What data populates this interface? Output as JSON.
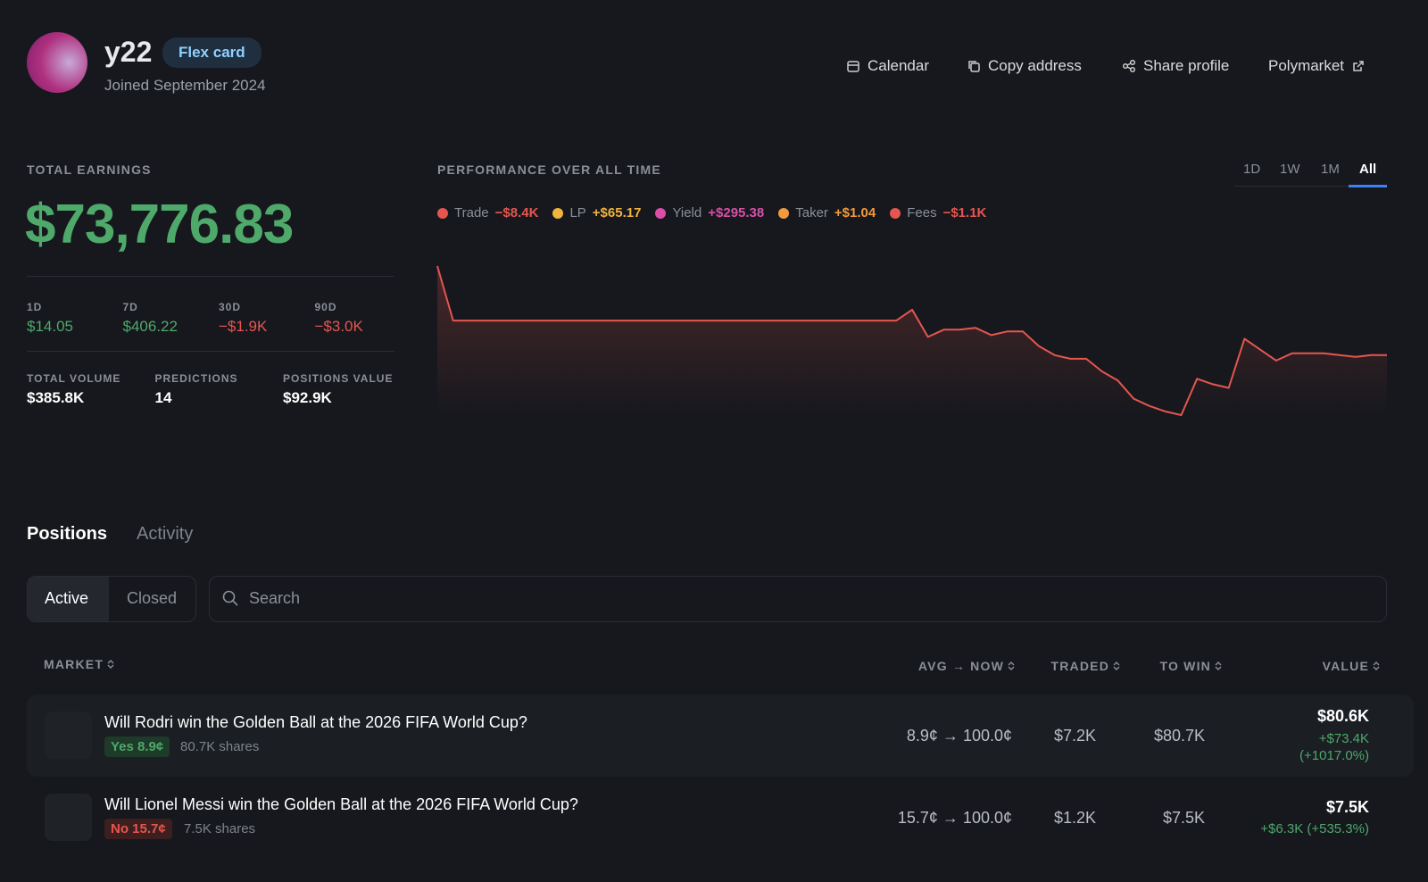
{
  "profile": {
    "name": "y22",
    "badge": "Flex card",
    "joined": "Joined September 2024"
  },
  "nav": [
    "Calendar",
    "Copy address",
    "Share profile",
    "Polymarket"
  ],
  "earnings": {
    "label": "TOTAL EARNINGS",
    "value": "$73,776.83",
    "periods": [
      {
        "label": "1D",
        "value": "$14.05"
      },
      {
        "label": "7D",
        "value": "$406.22"
      },
      {
        "label": "30D",
        "value": "−$1.9K"
      },
      {
        "label": "90D",
        "value": "−$3.0K"
      }
    ],
    "stats": [
      {
        "label": "TOTAL VOLUME",
        "value": "$385.8K"
      },
      {
        "label": "PREDICTIONS",
        "value": "14"
      },
      {
        "label": "POSITIONS VALUE",
        "value": "$92.9K"
      }
    ]
  },
  "performance": {
    "title": "PERFORMANCE OVER ALL TIME",
    "ranges": [
      "1D",
      "1W",
      "1M",
      "All"
    ],
    "legend": [
      {
        "name": "Trade",
        "value": "−$8.4K",
        "color": "#e5564f"
      },
      {
        "name": "LP",
        "value": "+$65.17",
        "color": "#f2b33d"
      },
      {
        "name": "Yield",
        "value": "+$295.38",
        "color": "#d94fa8"
      },
      {
        "name": "Taker",
        "value": "+$1.04",
        "color": "#f29a3d"
      },
      {
        "name": "Fees",
        "value": "−$1.1K",
        "color": "#e5564f"
      }
    ],
    "color": "#e5564f",
    "values": [
      6,
      0,
      0,
      0,
      0,
      0,
      0,
      0,
      0,
      0,
      0,
      0,
      0,
      0,
      0,
      0,
      0,
      0,
      0,
      0,
      0,
      0,
      0,
      0,
      0,
      0,
      0,
      0,
      0,
      0,
      1.2,
      -1.8,
      -1,
      -1,
      -0.8,
      -1.6,
      -1.2,
      -1.2,
      -2.8,
      -3.8,
      -4.2,
      -4.2,
      -5.6,
      -6.6,
      -8.6,
      -9.4,
      -10,
      -10.4,
      -6.4,
      -7,
      -7.4,
      -2,
      -3.2,
      -4.4,
      -3.6,
      -3.6,
      -3.6,
      -3.8,
      -4,
      -3.8,
      -3.8
    ]
  },
  "tabs": [
    "Positions",
    "Activity"
  ],
  "filters": [
    "Active",
    "Closed"
  ],
  "search": "Search",
  "table": {
    "columns": [
      "MARKET",
      "AVG → NOW",
      "TRADED",
      "TO WIN",
      "VALUE"
    ],
    "rows": [
      {
        "market": "Will Rodri win the Golden Ball at the 2026 FIFA World Cup?",
        "outcome": "Yes 8.9¢",
        "shares": "80.7K shares",
        "avg_now": "8.9¢ → 100.0¢",
        "traded": "$7.2K",
        "to_win": "$80.7K",
        "value": "$80.6K",
        "change": "+$73.4K",
        "change_pct": "(+1017.0%)"
      },
      {
        "market": "Will Lionel Messi win the Golden Ball at the 2026 FIFA World Cup?",
        "outcome": "No 15.7¢",
        "shares": "7.5K shares",
        "avg_now": "15.7¢ → 100.0¢",
        "traded": "$1.2K",
        "to_win": "$7.5K",
        "value": "$7.5K",
        "change": "+$6.3K (+535.3%)"
      }
    ]
  }
}
